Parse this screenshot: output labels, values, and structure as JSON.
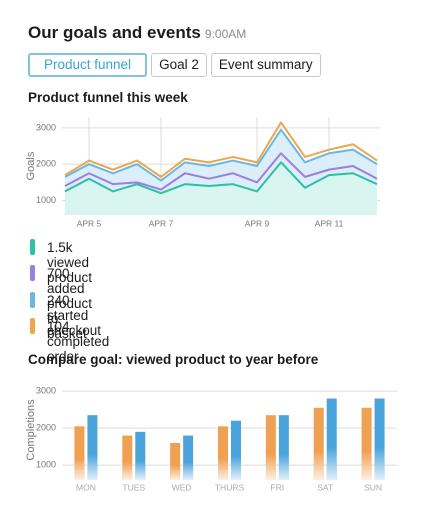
{
  "header": {
    "title": "Our goals and events",
    "time": "9:00AM"
  },
  "tabs": [
    "Product funnel",
    "Goal 2",
    "Event summary"
  ],
  "chart_data": [
    {
      "type": "line",
      "title": "Product funnel this week",
      "y_label": "Goals",
      "categories": [
        null,
        "APR 5",
        null,
        null,
        "APR 7",
        null,
        null,
        null,
        "APR 9",
        null,
        null,
        "APR 11",
        null,
        null
      ],
      "ylim": [
        600,
        3300
      ],
      "yticks": [
        1000,
        2000,
        3000
      ],
      "grid": true,
      "series": [
        {
          "name": "1.5k viewed product",
          "color": "#2ebfa5",
          "fill": "#d9f5ef",
          "values": [
            1250,
            1600,
            1250,
            1450,
            1200,
            1450,
            1400,
            1450,
            1250,
            2050,
            1350,
            1700,
            1750,
            1450
          ]
        },
        {
          "name": "700 added product to basket",
          "color": "#9b7fe0",
          "values": [
            1400,
            1750,
            1450,
            1500,
            1300,
            1750,
            1600,
            1750,
            1500,
            2300,
            1650,
            1850,
            1950,
            1600
          ]
        },
        {
          "name": "240 started checkout",
          "color": "#6ab8e0",
          "fill": "#dbeefa",
          "values": [
            1650,
            2000,
            1750,
            2000,
            1550,
            2050,
            1950,
            2100,
            1950,
            2950,
            2050,
            2300,
            2400,
            2000
          ]
        },
        {
          "name": "104 completed order",
          "color": "#eda64a",
          "values": [
            1700,
            2100,
            1850,
            2100,
            1650,
            2150,
            2050,
            2200,
            2050,
            3150,
            2200,
            2400,
            2550,
            2100
          ]
        }
      ]
    },
    {
      "type": "bar",
      "title": "Compare goal: viewed product to year before",
      "y_label": "Completions",
      "categories": [
        "MON",
        "TUES",
        "WED",
        "THURS",
        "FRI",
        "SAT",
        "SUN"
      ],
      "ylim": [
        600,
        3300
      ],
      "yticks": [
        1000,
        2000,
        3000
      ],
      "grid": true,
      "series": [
        {
          "color": "#f0a052",
          "values": [
            2050,
            1800,
            1600,
            2050,
            2350,
            2550,
            2550
          ]
        },
        {
          "color": "#4aa3db",
          "values": [
            2350,
            1900,
            1800,
            2200,
            2350,
            2800,
            2800
          ]
        }
      ]
    }
  ]
}
